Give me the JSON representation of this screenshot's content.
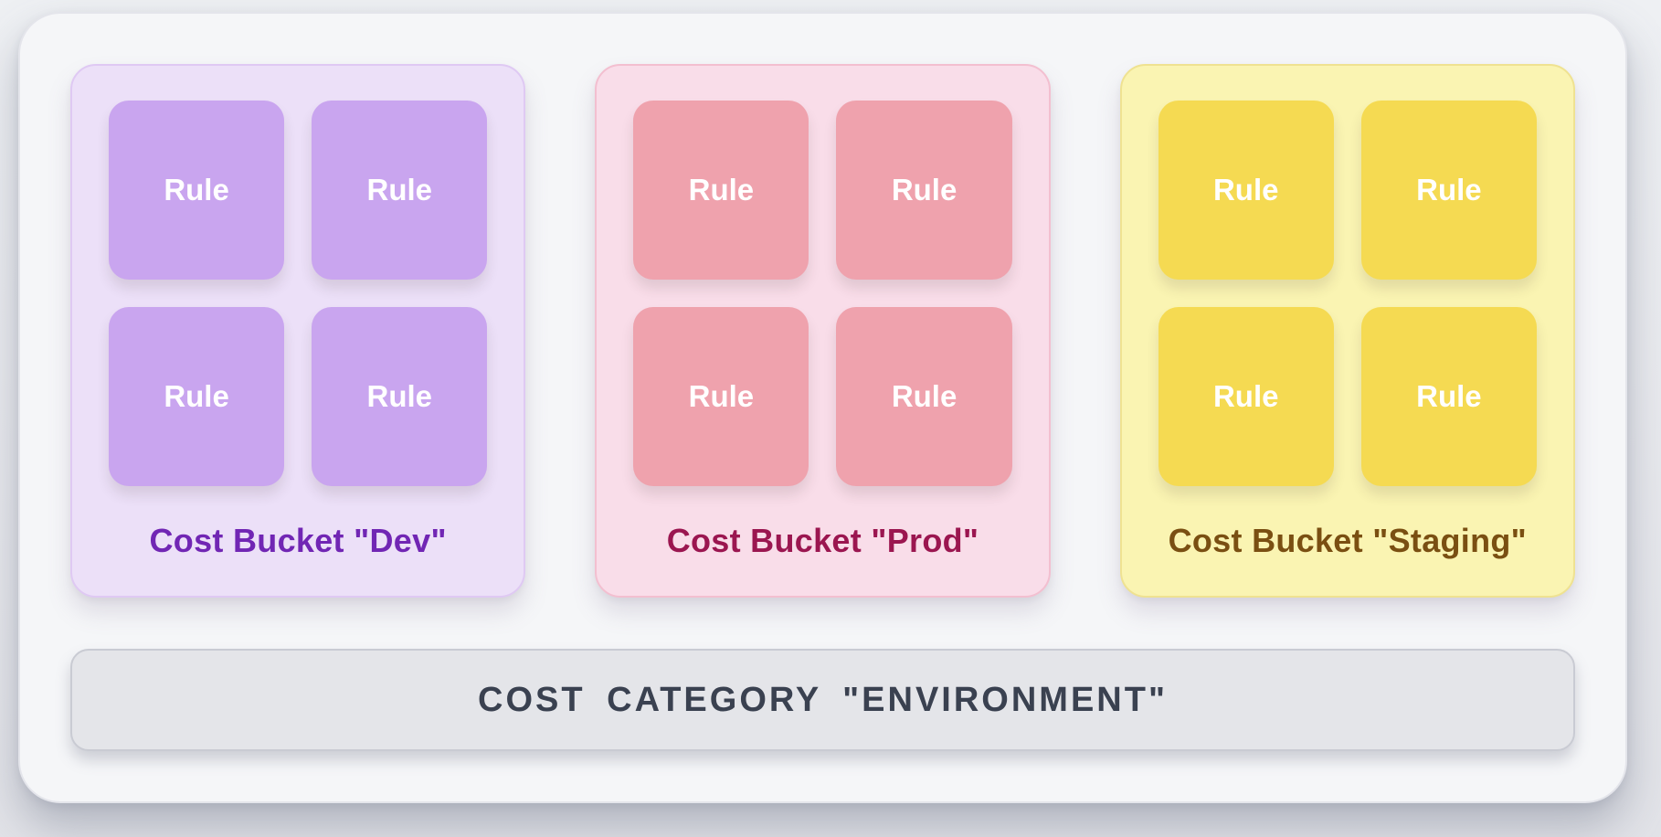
{
  "page": {
    "background": "#ebedf0",
    "panel_background": "#f5f6f8",
    "panel_border": "#e4e5eb"
  },
  "diagram": {
    "buckets": [
      {
        "title": "Cost Bucket \"Dev\"",
        "rule_labels": [
          "Rule",
          "Rule",
          "Rule",
          "Rule"
        ],
        "theme": {
          "background": "#ece0f8",
          "border": "#dfc9f3",
          "tile": "#c9a5ef",
          "title_color": "#7126b4"
        }
      },
      {
        "title": "Cost Bucket \"Prod\"",
        "rule_labels": [
          "Rule",
          "Rule",
          "Rule",
          "Rule"
        ],
        "theme": {
          "background": "#f9dde9",
          "border": "#f3bfd0",
          "tile": "#efa2ad",
          "title_color": "#9b1650"
        }
      },
      {
        "title": "Cost Bucket \"Staging\"",
        "rule_labels": [
          "Rule",
          "Rule",
          "Rule",
          "Rule"
        ],
        "theme": {
          "background": "#faf4b2",
          "border": "#efe291",
          "tile": "#f5da52",
          "title_color": "#7a4f12"
        }
      }
    ],
    "rule_text_color": "#ffffff",
    "category_bar": {
      "label": "COST CATEGORY \"ENVIRONMENT\"",
      "background": "#e4e5e9",
      "border": "#c9cbd3",
      "text_color": "#3a4150"
    }
  }
}
